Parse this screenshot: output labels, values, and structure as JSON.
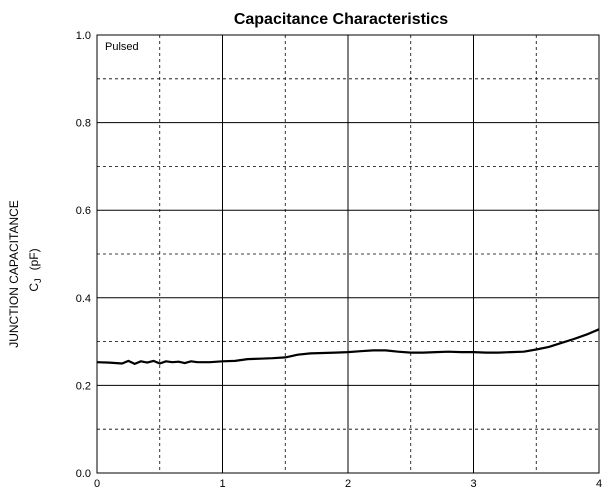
{
  "chart_data": {
    "type": "line",
    "title": "Capacitance Characteristics",
    "ylabel_line1": "JUNCTION CAPACITANCE",
    "ylabel_line2_main": "C",
    "ylabel_line2_sub": "J",
    "ylabel_line2_unit": "(pF)",
    "xlabel": "",
    "annotation": "Pulsed",
    "xlim": [
      0,
      4
    ],
    "ylim": [
      0,
      1.0
    ],
    "x_ticks": [
      0,
      1,
      2,
      3,
      4
    ],
    "x_tick_labels": [
      "0",
      "1",
      "2",
      "3",
      "4"
    ],
    "y_ticks": [
      0,
      0.2,
      0.4,
      0.6,
      0.8,
      1.0
    ],
    "y_tick_labels": [
      "0.0",
      "0.2",
      "0.4",
      "0.6",
      "0.8",
      "1.0"
    ],
    "grid_major_x": [
      1,
      2,
      3
    ],
    "grid_major_y": [
      0.2,
      0.4,
      0.6,
      0.8
    ],
    "grid_minor_x": [
      0.5,
      1.5,
      2.5,
      3.5
    ],
    "grid_minor_y": [
      0.1,
      0.3,
      0.5,
      0.7,
      0.9
    ],
    "grid": true,
    "series": [
      {
        "x": [
          0.0,
          0.1,
          0.2,
          0.25,
          0.3,
          0.35,
          0.4,
          0.45,
          0.5,
          0.55,
          0.6,
          0.65,
          0.7,
          0.75,
          0.8,
          0.9,
          1.0,
          1.1,
          1.2,
          1.3,
          1.4,
          1.5,
          1.6,
          1.7,
          1.8,
          1.9,
          2.0,
          2.1,
          2.2,
          2.3,
          2.4,
          2.5,
          2.6,
          2.7,
          2.8,
          2.9,
          3.0,
          3.1,
          3.2,
          3.3,
          3.4,
          3.5,
          3.6,
          3.7,
          3.8,
          3.9,
          4.0
        ],
        "y": [
          0.253,
          0.252,
          0.25,
          0.256,
          0.249,
          0.255,
          0.252,
          0.256,
          0.25,
          0.255,
          0.253,
          0.254,
          0.251,
          0.255,
          0.253,
          0.253,
          0.255,
          0.256,
          0.26,
          0.261,
          0.262,
          0.264,
          0.27,
          0.273,
          0.274,
          0.275,
          0.276,
          0.278,
          0.28,
          0.28,
          0.277,
          0.275,
          0.275,
          0.276,
          0.277,
          0.276,
          0.276,
          0.275,
          0.275,
          0.276,
          0.277,
          0.282,
          0.288,
          0.297,
          0.306,
          0.316,
          0.328
        ],
        "color": "#000000"
      }
    ]
  }
}
